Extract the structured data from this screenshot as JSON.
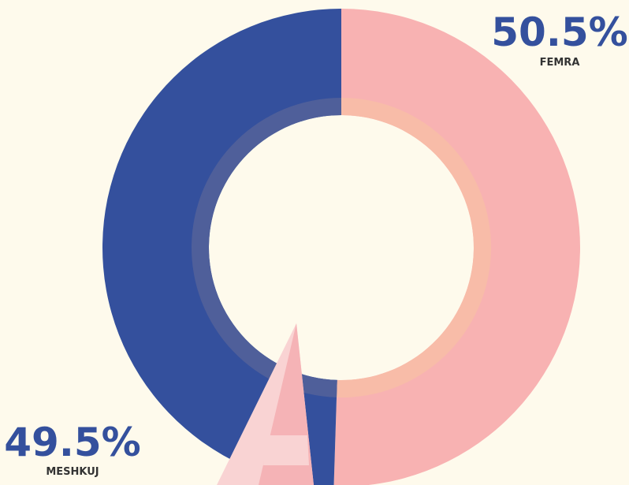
{
  "chart_data": {
    "type": "pie",
    "categories": [
      "FEMRA",
      "MESHKUJ"
    ],
    "values": [
      50.5,
      49.5
    ],
    "value_labels": [
      "50.5%",
      "49.5%"
    ],
    "colors": [
      "#f8b2b2",
      "#34509d"
    ],
    "band_colors": [
      "#f8bca8",
      "#4f5f9a"
    ]
  }
}
